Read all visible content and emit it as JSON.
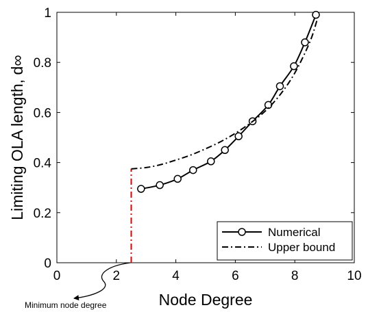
{
  "chart_data": {
    "type": "line",
    "xlabel": "Node Degree",
    "ylabel": "Limiting OLA length, d∞",
    "xlim": [
      0,
      10
    ],
    "ylim": [
      0,
      1
    ],
    "xticks": [
      0,
      2,
      4,
      6,
      8,
      10
    ],
    "yticks": [
      0,
      0.2,
      0.4,
      0.6,
      0.8,
      1
    ],
    "xtick_labels": [
      "0",
      "2",
      "4",
      "6",
      "8",
      "10"
    ],
    "ytick_labels": [
      "0",
      "0.2",
      "0.4",
      "0.6",
      "0.8",
      "1"
    ],
    "grid": false,
    "legend": "bottom-right",
    "series": [
      {
        "name": "Numerical",
        "style": "solid-line-circle-markers",
        "color": "#000000",
        "x": [
          2.83,
          3.46,
          4.06,
          4.58,
          5.18,
          5.65,
          6.11,
          6.58,
          7.11,
          7.5,
          7.97,
          8.34,
          8.71
        ],
        "y": [
          0.295,
          0.31,
          0.335,
          0.37,
          0.405,
          0.45,
          0.505,
          0.565,
          0.63,
          0.705,
          0.785,
          0.88,
          0.99
        ]
      },
      {
        "name": "Upper bound",
        "style": "dash-dot",
        "color": "#000000",
        "x": [
          2.5,
          3.0,
          3.5,
          4.0,
          4.5,
          5.0,
          5.5,
          6.0,
          6.5,
          7.0,
          7.5,
          8.0,
          8.5,
          8.75
        ],
        "y": [
          0.375,
          0.38,
          0.392,
          0.41,
          0.43,
          0.455,
          0.483,
          0.517,
          0.557,
          0.605,
          0.67,
          0.758,
          0.88,
          0.97
        ]
      }
    ],
    "vertical_marker": {
      "x": 2.5,
      "y_from": 0,
      "y_to": 0.375,
      "style": "dash-dot",
      "color": "#dd0000"
    },
    "annotation": {
      "text": "Minimum node degree",
      "points_to": [
        2.5,
        0
      ]
    }
  }
}
